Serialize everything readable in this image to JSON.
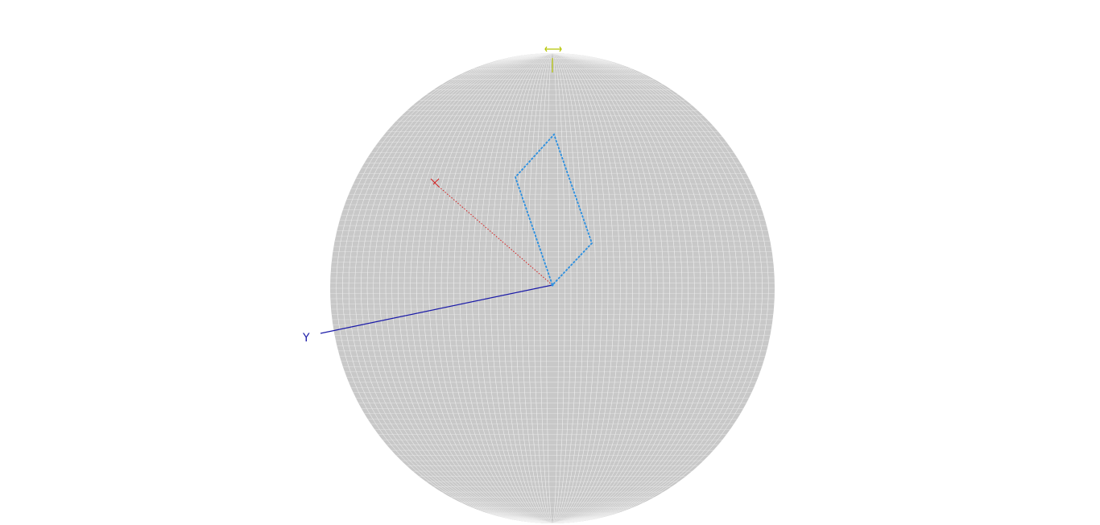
{
  "scene": {
    "background": "#ffffff",
    "sphere": {
      "fill": "#c8c8c8",
      "grid_color": "#f2f2f2"
    },
    "axes": [
      {
        "name": "x",
        "label": "",
        "color": "#d22020"
      },
      {
        "name": "y",
        "label": "Y",
        "color": "#1a1aa8"
      },
      {
        "name": "z",
        "label": "",
        "color": "#b5c400"
      }
    ],
    "polygon": {
      "color": "#2a8fe0",
      "shape": "quadrilateral"
    }
  }
}
